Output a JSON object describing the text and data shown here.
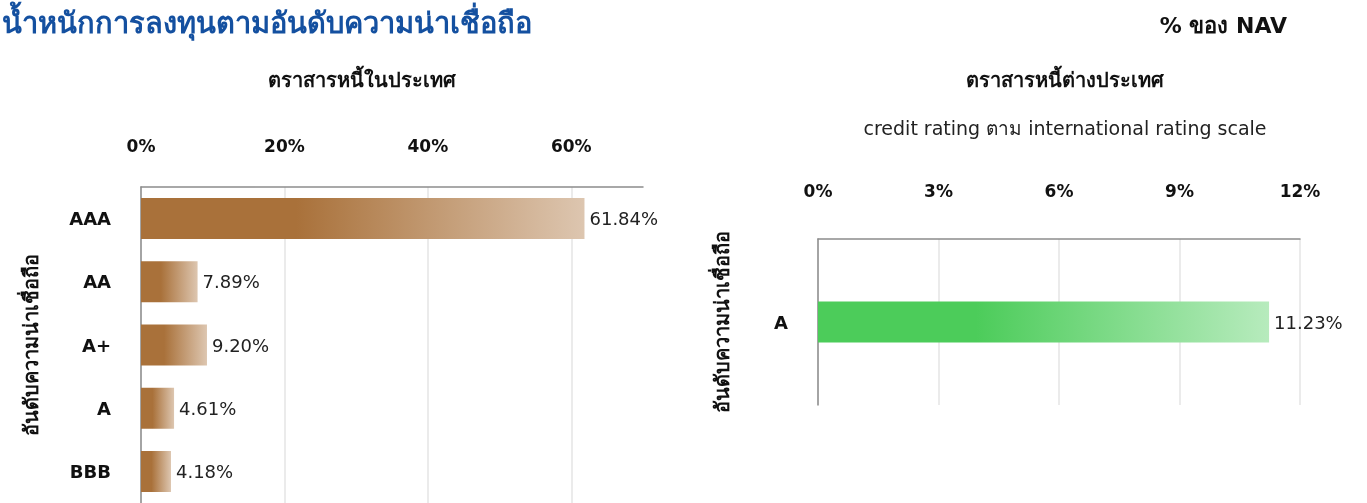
{
  "chart_data": [
    {
      "type": "bar",
      "orientation": "horizontal",
      "title": "น้ำหนักการลงทุนตามอันดับความน่าเชื่อถือ",
      "subtitle": "ตราสารหนี้ในประเทศ",
      "ylabel": "อันดับความน่าเชื่อถือ",
      "categories": [
        "AAA",
        "AA",
        "A+",
        "A",
        "BBB"
      ],
      "values": [
        61.84,
        7.89,
        9.2,
        4.61,
        4.18
      ],
      "value_labels": [
        "61.84%",
        "7.89%",
        "9.20%",
        "4.61%",
        "4.18%"
      ],
      "color": "#a9713a",
      "xlim": [
        0,
        70
      ],
      "xticks": [
        {
          "value": 0,
          "label": "0%"
        },
        {
          "value": 20,
          "label": "20%"
        },
        {
          "value": 40,
          "label": "40%"
        },
        {
          "value": 60,
          "label": "60%"
        }
      ],
      "grid": "x"
    },
    {
      "type": "bar",
      "orientation": "horizontal",
      "title": "ตราสารหนี้ต่างประเทศ",
      "subtitle": "credit rating ตาม international rating scale",
      "annotations": [
        "% ของ NAV"
      ],
      "ylabel": "อันดับความน่าเชื่อถือ",
      "categories": [
        "A"
      ],
      "values": [
        11.23
      ],
      "value_labels": [
        "11.23%"
      ],
      "color": "#4ccc5a",
      "xlim": [
        0,
        12
      ],
      "xticks": [
        {
          "value": 0,
          "label": "0%"
        },
        {
          "value": 3,
          "label": "3%"
        },
        {
          "value": 6,
          "label": "6%"
        },
        {
          "value": 9,
          "label": "9%"
        },
        {
          "value": 12,
          "label": "12%"
        }
      ],
      "grid": "x"
    }
  ]
}
